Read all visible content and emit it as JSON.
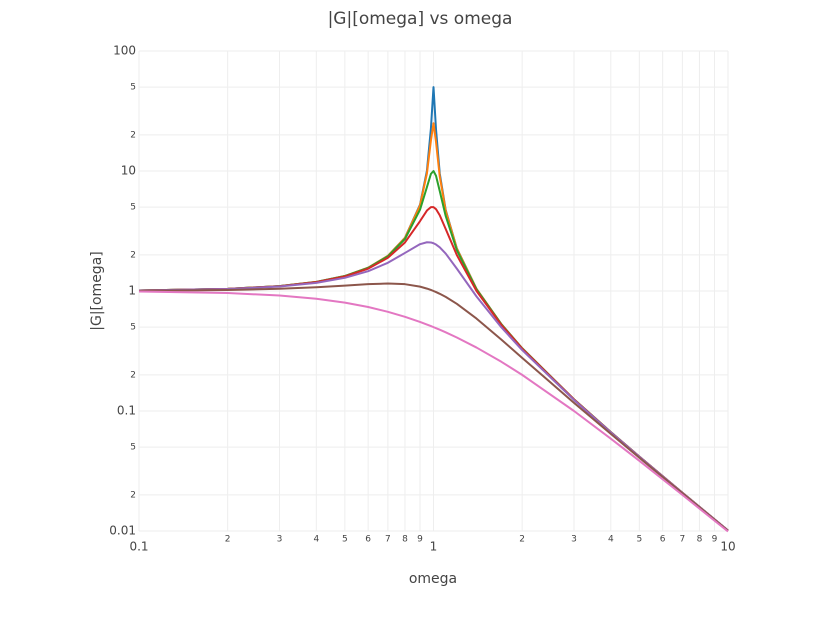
{
  "chart_data": {
    "type": "line",
    "title": "|G|[omega] vs omega",
    "x_label": "omega",
    "y_label": "|G|[omega]",
    "x": [
      0.1,
      0.2,
      0.3,
      0.4,
      0.5,
      0.6,
      0.7,
      0.8,
      0.9,
      0.95,
      0.98,
      1,
      1.02,
      1.05,
      1.1,
      1.2,
      1.4,
      1.7,
      2,
      3,
      4,
      5,
      7,
      10
    ],
    "series": [
      {
        "color": "#1f77b4",
        "values": [
          1.0101,
          1.0417,
          1.0989,
          1.1905,
          1.3333,
          1.5625,
          1.9608,
          2.775,
          5.2397,
          10.067,
          22.633,
          50,
          22.097,
          9.558,
          4.736,
          2.2693,
          1.0412,
          0.529,
          0.3333,
          0.125,
          0.06667,
          0.04167,
          0.020833,
          0.010101
        ]
      },
      {
        "color": "#ff7f0e",
        "values": [
          1.0101,
          1.0417,
          1.0989,
          1.1904,
          1.3332,
          1.5624,
          1.9604,
          2.7669,
          5.1712,
          9.5565,
          17.946,
          25,
          17.416,
          9.028,
          4.6607,
          2.2593,
          1.0399,
          0.5288,
          0.3333,
          0.125,
          0.06667,
          0.04167,
          0.020833,
          0.010101
        ]
      },
      {
        "color": "#2ca02c",
        "values": [
          1.0101,
          1.0414,
          1.0983,
          1.1891,
          1.3304,
          1.5557,
          1.9426,
          2.7116,
          4.7565,
          7.346,
          9.461,
          10,
          9.115,
          6.815,
          4.2182,
          2.1927,
          1.0308,
          0.527,
          0.3326,
          0.1249,
          0.06664,
          0.04166,
          0.020833,
          0.0101005
        ]
      },
      {
        "color": "#d62728",
        "values": [
          1.0099,
          1.0408,
          1.0965,
          1.1851,
          1.3216,
          1.5357,
          1.8908,
          2.5384,
          3.8208,
          4.6826,
          5.001,
          5,
          4.8086,
          4.2794,
          3.288,
          1.9952,
          1.0,
          0.5207,
          0.3304,
          0.1247,
          0.06657,
          0.04163,
          0.020825,
          0.010099
        ]
      },
      {
        "color": "#9467bd",
        "values": [
          1.009,
          1.038,
          1.0895,
          1.1694,
          1.2883,
          1.463,
          1.7188,
          2.0762,
          2.4566,
          2.549,
          2.538,
          2.5,
          2.439,
          2.313,
          2.0511,
          1.5357,
          0.8998,
          0.4979,
          0.3221,
          0.1236,
          0.06629,
          0.04152,
          0.020798,
          0.010093
        ]
      },
      {
        "color": "#8c564b",
        "values": [
          1.005,
          1.0198,
          1.0436,
          1.0748,
          1.1094,
          1.1399,
          1.1547,
          1.1399,
          1.0871,
          1.0471,
          1.0196,
          1,
          0.9796,
          0.9479,
          0.893,
          0.7824,
          0.5891,
          0.3934,
          0.2774,
          0.117,
          0.06442,
          0.04079,
          0.020615,
          0.01005
        ]
      },
      {
        "color": "#e377c2",
        "values": [
          0.99,
          0.9615,
          0.9174,
          0.8621,
          0.8,
          0.7353,
          0.6711,
          0.6098,
          0.5525,
          0.5256,
          0.5101,
          0.5,
          0.4901,
          0.4756,
          0.4525,
          0.4098,
          0.3378,
          0.2571,
          0.2,
          0.1,
          0.05882,
          0.03846,
          0.02,
          0.009901
        ]
      }
    ],
    "x_log": true,
    "y_log": true,
    "grid": true,
    "xlim": [
      0.1,
      10
    ],
    "ylim": [
      0.01,
      100
    ],
    "xticks": [
      0.1,
      {
        "value": 0.2,
        "label": "2"
      },
      {
        "value": 0.3,
        "label": "3"
      },
      {
        "value": 0.4,
        "label": "4"
      },
      {
        "value": 0.5,
        "label": "5"
      },
      {
        "value": 0.6,
        "label": "6"
      },
      {
        "value": 0.7,
        "label": "7"
      },
      {
        "value": 0.8,
        "label": "8"
      },
      {
        "value": 0.9,
        "label": "9"
      },
      1,
      {
        "value": 2,
        "label": "2"
      },
      {
        "value": 3,
        "label": "3"
      },
      {
        "value": 4,
        "label": "4"
      },
      {
        "value": 5,
        "label": "5"
      },
      {
        "value": 6,
        "label": "6"
      },
      {
        "value": 7,
        "label": "7"
      },
      {
        "value": 8,
        "label": "8"
      },
      {
        "value": 9,
        "label": "9"
      },
      10
    ],
    "yticks": [
      0.01,
      {
        "value": 0.02,
        "label": "2"
      },
      {
        "value": 0.05,
        "label": "5"
      },
      0.1,
      {
        "value": 0.2,
        "label": "2"
      },
      {
        "value": 0.5,
        "label": "5"
      },
      1,
      {
        "value": 2,
        "label": "2"
      },
      {
        "value": 5,
        "label": "5"
      },
      10,
      {
        "value": 20,
        "label": "2"
      },
      {
        "value": 50,
        "label": "5"
      },
      100
    ]
  }
}
